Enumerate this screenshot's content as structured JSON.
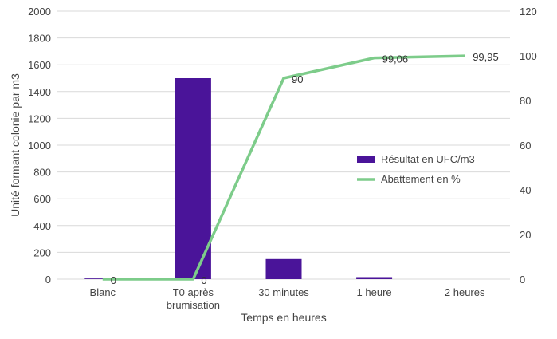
{
  "chart_data": {
    "type": "bar+line",
    "categories": [
      "Blanc",
      "T0 après\nbrumisation",
      "30 minutes",
      "1 heure",
      "2 heures"
    ],
    "series": [
      {
        "name": "Résultat en UFC/m3",
        "type": "bar",
        "axis": "left",
        "color": "#4a1499",
        "values": [
          5,
          1500,
          150,
          15,
          0
        ]
      },
      {
        "name": "Abattement en %",
        "type": "line",
        "axis": "right",
        "color": "#7dcc8a",
        "values": [
          0,
          0,
          90,
          99.06,
          99.95
        ]
      }
    ],
    "data_labels": [
      "0",
      "0",
      "90",
      "99,06",
      "99,95"
    ],
    "xlabel": "Temps en heures",
    "ylabel": "Unité formant colonie par m3",
    "ylim": [
      0,
      2000
    ],
    "yticks": [
      0,
      200,
      400,
      600,
      800,
      1000,
      1200,
      1400,
      1600,
      1800,
      2000
    ],
    "y2lim": [
      0,
      120
    ],
    "y2ticks": [
      0,
      20,
      40,
      60,
      80,
      100,
      120
    ],
    "grid": true,
    "legend_position": "center-right"
  }
}
